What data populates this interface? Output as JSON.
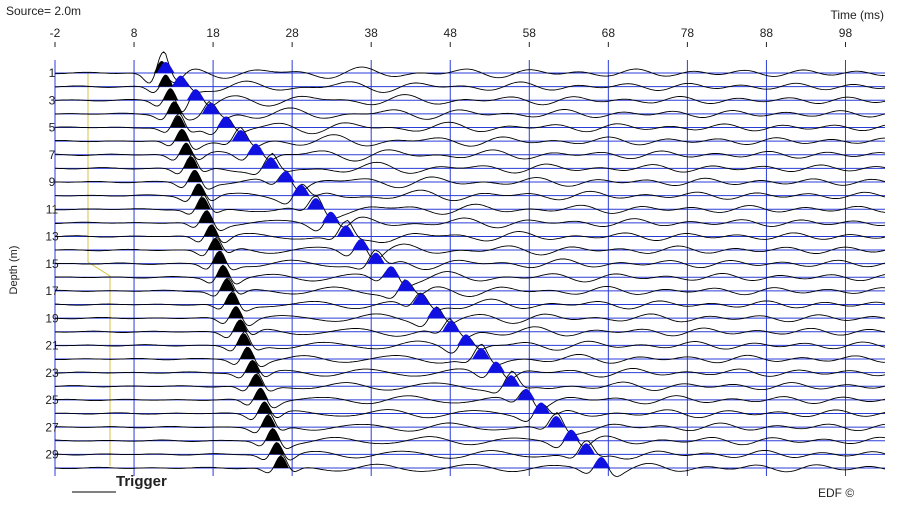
{
  "chart_data": {
    "type": "wiggle",
    "title": "Source= 2.0m",
    "x_label": "Time (ms)",
    "y_label": "Depth (m)",
    "xlim": [
      -2,
      103
    ],
    "xticks": [
      -2,
      8,
      18,
      28,
      38,
      48,
      58,
      68,
      78,
      88,
      98
    ],
    "categories": [
      1,
      null,
      3,
      null,
      5,
      null,
      7,
      null,
      9,
      null,
      11,
      null,
      13,
      null,
      15,
      null,
      17,
      null,
      19,
      null,
      21,
      null,
      23,
      null,
      25,
      null,
      27,
      null,
      29,
      null
    ],
    "p_arrivals": {
      "color": "#000000",
      "values": [
        11.5,
        12,
        12.6,
        13.1,
        13.6,
        14.1,
        14.6,
        15.2,
        15.7,
        16.2,
        16.7,
        17.2,
        17.8,
        18.3,
        18.8,
        19.3,
        19.8,
        20.4,
        20.9,
        21.4,
        21.9,
        22.4,
        23,
        23.5,
        24,
        24.5,
        25,
        25.6,
        26.1,
        26.6
      ]
    },
    "s_arrivals": {
      "color": "#1010e0",
      "values": [
        12,
        13.9,
        15.8,
        17.7,
        19.6,
        21.5,
        23.4,
        25.3,
        27.2,
        29.1,
        31,
        32.9,
        34.8,
        36.7,
        38.6,
        40.5,
        42.4,
        44.3,
        46.2,
        48.1,
        50,
        51.9,
        53.8,
        55.7,
        57.6,
        59.5,
        61.4,
        63.3,
        65.2,
        67.1
      ]
    },
    "grid": true,
    "grid_color": "#2a3cd8",
    "trigger_label": "Trigger",
    "credit": "EDF ©"
  }
}
